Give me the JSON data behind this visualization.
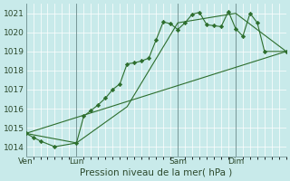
{
  "background_color": "#c8eaea",
  "grid_color": "#b0cccc",
  "line_color": "#2d6e2d",
  "marker_color": "#2d6e2d",
  "title": "Pression niveau de la mer( hPa )",
  "ylim": [
    1013.5,
    1021.5
  ],
  "yticks": [
    1014,
    1015,
    1016,
    1017,
    1018,
    1019,
    1020,
    1021
  ],
  "day_labels": [
    "Ven",
    "Lun",
    "Sam",
    "Dim"
  ],
  "day_positions": [
    0,
    7,
    21,
    29
  ],
  "vline_positions": [
    0,
    7,
    21,
    29
  ],
  "xlim": [
    0,
    36
  ],
  "line1_x": [
    0,
    1,
    2,
    4,
    7,
    8,
    9,
    10,
    11,
    12,
    13,
    14,
    15,
    16,
    17,
    18,
    19,
    20,
    21,
    22,
    23,
    24,
    25,
    26,
    27,
    28,
    29,
    30,
    31,
    32,
    33,
    36
  ],
  "line1_y": [
    1014.7,
    1014.5,
    1014.3,
    1014.0,
    1014.2,
    1015.6,
    1015.9,
    1016.2,
    1016.55,
    1017.0,
    1017.3,
    1018.35,
    1018.4,
    1018.5,
    1018.65,
    1019.6,
    1020.55,
    1020.45,
    1020.15,
    1020.5,
    1020.95,
    1021.05,
    1020.4,
    1020.35,
    1020.3,
    1021.1,
    1020.2,
    1019.8,
    1021.0,
    1020.5,
    1019.0,
    1019.0
  ],
  "line2_x": [
    0,
    7,
    14,
    21,
    29,
    36
  ],
  "line2_y": [
    1014.7,
    1014.2,
    1016.1,
    1020.5,
    1021.0,
    1019.0
  ],
  "line3_x": [
    0,
    36
  ],
  "line3_y": [
    1014.7,
    1019.0
  ],
  "title_fontsize": 7.5,
  "tick_fontsize": 6.5
}
